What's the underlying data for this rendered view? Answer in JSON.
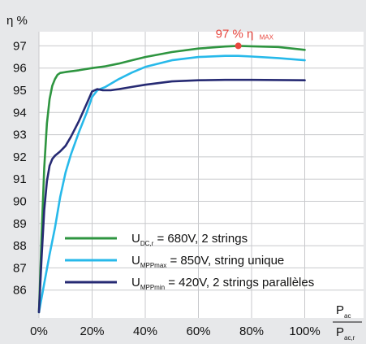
{
  "chart_data": {
    "type": "line",
    "ylabel": "η %",
    "xlim": [
      0,
      100
    ],
    "ylim": [
      85,
      97
    ],
    "x_ticks": [
      "0%",
      "20%",
      "40%",
      "60%",
      "80%",
      "100%"
    ],
    "y_ticks": [
      "86",
      "87",
      "88",
      "89",
      "90",
      "91",
      "92",
      "93",
      "94",
      "95",
      "96",
      "97"
    ],
    "xlabel": {
      "numerator": "P",
      "numerator_sub": "ac",
      "denominator": "P",
      "denominator_sub": "ac,r"
    },
    "grid": true,
    "legend_position": "bottom-center",
    "annotation": {
      "x": 75,
      "y": 97,
      "text": "97 % η",
      "sub": "MAX",
      "color": "#e8473f"
    },
    "series": [
      {
        "name": "U = 680V, 2 strings",
        "name_main": "U",
        "name_sub": "DC,r",
        "name_rest": " = 680V, 2 strings",
        "color": "#2e9540",
        "x": [
          0,
          1,
          2,
          3,
          4,
          5,
          6,
          7,
          8,
          10,
          15,
          20,
          25,
          30,
          35,
          40,
          50,
          60,
          70,
          75,
          80,
          90,
          100
        ],
        "y": [
          85,
          88.5,
          91.5,
          93.5,
          94.6,
          95.2,
          95.5,
          95.7,
          95.78,
          95.82,
          95.9,
          96.0,
          96.08,
          96.2,
          96.35,
          96.5,
          96.72,
          96.88,
          96.97,
          97.0,
          96.98,
          96.95,
          96.82
        ]
      },
      {
        "name": "U = 850V, string unique",
        "name_main": "U",
        "name_sub": "MPPmax",
        "name_rest": " = 850V, string unique",
        "color": "#27b9ea",
        "x": [
          0,
          2,
          4,
          6,
          8,
          10,
          12,
          15,
          18,
          20,
          22,
          25,
          30,
          35,
          40,
          50,
          60,
          70,
          75,
          80,
          90,
          100
        ],
        "y": [
          85,
          86.3,
          87.6,
          88.8,
          90.2,
          91.3,
          92.1,
          93.1,
          94.0,
          94.7,
          95.0,
          95.15,
          95.5,
          95.8,
          96.05,
          96.35,
          96.5,
          96.55,
          96.55,
          96.52,
          96.45,
          96.35
        ]
      },
      {
        "name": "U = 420V, 2 strings parallèles",
        "name_main": "U",
        "name_sub": "MPPmin",
        "name_rest": " = 420V, 2 strings parallèles",
        "color": "#262a73",
        "x": [
          0,
          1,
          2,
          3,
          4,
          5,
          6,
          8,
          10,
          12,
          15,
          18,
          20,
          22,
          24,
          27,
          30,
          35,
          40,
          50,
          60,
          70,
          80,
          90,
          100
        ],
        "y": [
          85,
          87.5,
          89.6,
          90.9,
          91.6,
          91.9,
          92.05,
          92.25,
          92.5,
          92.9,
          93.6,
          94.4,
          94.95,
          95.05,
          95.0,
          95.0,
          95.05,
          95.15,
          95.25,
          95.4,
          95.45,
          95.47,
          95.47,
          95.46,
          95.45
        ]
      }
    ]
  }
}
